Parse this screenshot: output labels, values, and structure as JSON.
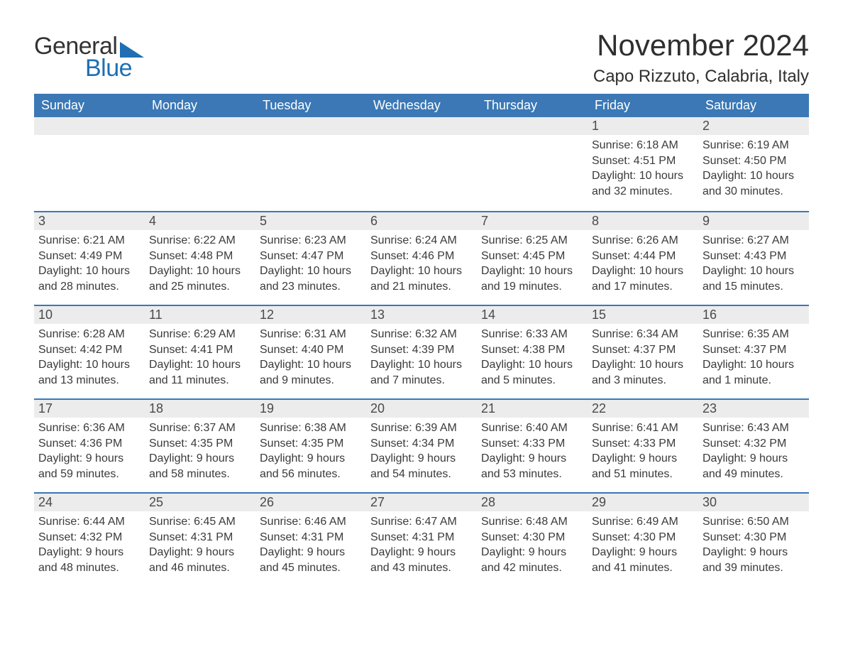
{
  "logo": {
    "text1": "General",
    "text2": "Blue"
  },
  "title": "November 2024",
  "location": "Capo Rizzuto, Calabria, Italy",
  "colors": {
    "header_bg": "#3b78b5",
    "header_text": "#ffffff",
    "row_rule": "#3b78b5",
    "daynum_bg": "#ececec",
    "body_text": "#3a3a3a",
    "logo_blue": "#1f6fb2",
    "page_bg": "#ffffff"
  },
  "weekdays": [
    "Sunday",
    "Monday",
    "Tuesday",
    "Wednesday",
    "Thursday",
    "Friday",
    "Saturday"
  ],
  "grid": [
    [
      {
        "day": "",
        "sunrise": "",
        "sunset": "",
        "daylight": ""
      },
      {
        "day": "",
        "sunrise": "",
        "sunset": "",
        "daylight": ""
      },
      {
        "day": "",
        "sunrise": "",
        "sunset": "",
        "daylight": ""
      },
      {
        "day": "",
        "sunrise": "",
        "sunset": "",
        "daylight": ""
      },
      {
        "day": "",
        "sunrise": "",
        "sunset": "",
        "daylight": ""
      },
      {
        "day": "1",
        "sunrise": "Sunrise: 6:18 AM",
        "sunset": "Sunset: 4:51 PM",
        "daylight": "Daylight: 10 hours and 32 minutes."
      },
      {
        "day": "2",
        "sunrise": "Sunrise: 6:19 AM",
        "sunset": "Sunset: 4:50 PM",
        "daylight": "Daylight: 10 hours and 30 minutes."
      }
    ],
    [
      {
        "day": "3",
        "sunrise": "Sunrise: 6:21 AM",
        "sunset": "Sunset: 4:49 PM",
        "daylight": "Daylight: 10 hours and 28 minutes."
      },
      {
        "day": "4",
        "sunrise": "Sunrise: 6:22 AM",
        "sunset": "Sunset: 4:48 PM",
        "daylight": "Daylight: 10 hours and 25 minutes."
      },
      {
        "day": "5",
        "sunrise": "Sunrise: 6:23 AM",
        "sunset": "Sunset: 4:47 PM",
        "daylight": "Daylight: 10 hours and 23 minutes."
      },
      {
        "day": "6",
        "sunrise": "Sunrise: 6:24 AM",
        "sunset": "Sunset: 4:46 PM",
        "daylight": "Daylight: 10 hours and 21 minutes."
      },
      {
        "day": "7",
        "sunrise": "Sunrise: 6:25 AM",
        "sunset": "Sunset: 4:45 PM",
        "daylight": "Daylight: 10 hours and 19 minutes."
      },
      {
        "day": "8",
        "sunrise": "Sunrise: 6:26 AM",
        "sunset": "Sunset: 4:44 PM",
        "daylight": "Daylight: 10 hours and 17 minutes."
      },
      {
        "day": "9",
        "sunrise": "Sunrise: 6:27 AM",
        "sunset": "Sunset: 4:43 PM",
        "daylight": "Daylight: 10 hours and 15 minutes."
      }
    ],
    [
      {
        "day": "10",
        "sunrise": "Sunrise: 6:28 AM",
        "sunset": "Sunset: 4:42 PM",
        "daylight": "Daylight: 10 hours and 13 minutes."
      },
      {
        "day": "11",
        "sunrise": "Sunrise: 6:29 AM",
        "sunset": "Sunset: 4:41 PM",
        "daylight": "Daylight: 10 hours and 11 minutes."
      },
      {
        "day": "12",
        "sunrise": "Sunrise: 6:31 AM",
        "sunset": "Sunset: 4:40 PM",
        "daylight": "Daylight: 10 hours and 9 minutes."
      },
      {
        "day": "13",
        "sunrise": "Sunrise: 6:32 AM",
        "sunset": "Sunset: 4:39 PM",
        "daylight": "Daylight: 10 hours and 7 minutes."
      },
      {
        "day": "14",
        "sunrise": "Sunrise: 6:33 AM",
        "sunset": "Sunset: 4:38 PM",
        "daylight": "Daylight: 10 hours and 5 minutes."
      },
      {
        "day": "15",
        "sunrise": "Sunrise: 6:34 AM",
        "sunset": "Sunset: 4:37 PM",
        "daylight": "Daylight: 10 hours and 3 minutes."
      },
      {
        "day": "16",
        "sunrise": "Sunrise: 6:35 AM",
        "sunset": "Sunset: 4:37 PM",
        "daylight": "Daylight: 10 hours and 1 minute."
      }
    ],
    [
      {
        "day": "17",
        "sunrise": "Sunrise: 6:36 AM",
        "sunset": "Sunset: 4:36 PM",
        "daylight": "Daylight: 9 hours and 59 minutes."
      },
      {
        "day": "18",
        "sunrise": "Sunrise: 6:37 AM",
        "sunset": "Sunset: 4:35 PM",
        "daylight": "Daylight: 9 hours and 58 minutes."
      },
      {
        "day": "19",
        "sunrise": "Sunrise: 6:38 AM",
        "sunset": "Sunset: 4:35 PM",
        "daylight": "Daylight: 9 hours and 56 minutes."
      },
      {
        "day": "20",
        "sunrise": "Sunrise: 6:39 AM",
        "sunset": "Sunset: 4:34 PM",
        "daylight": "Daylight: 9 hours and 54 minutes."
      },
      {
        "day": "21",
        "sunrise": "Sunrise: 6:40 AM",
        "sunset": "Sunset: 4:33 PM",
        "daylight": "Daylight: 9 hours and 53 minutes."
      },
      {
        "day": "22",
        "sunrise": "Sunrise: 6:41 AM",
        "sunset": "Sunset: 4:33 PM",
        "daylight": "Daylight: 9 hours and 51 minutes."
      },
      {
        "day": "23",
        "sunrise": "Sunrise: 6:43 AM",
        "sunset": "Sunset: 4:32 PM",
        "daylight": "Daylight: 9 hours and 49 minutes."
      }
    ],
    [
      {
        "day": "24",
        "sunrise": "Sunrise: 6:44 AM",
        "sunset": "Sunset: 4:32 PM",
        "daylight": "Daylight: 9 hours and 48 minutes."
      },
      {
        "day": "25",
        "sunrise": "Sunrise: 6:45 AM",
        "sunset": "Sunset: 4:31 PM",
        "daylight": "Daylight: 9 hours and 46 minutes."
      },
      {
        "day": "26",
        "sunrise": "Sunrise: 6:46 AM",
        "sunset": "Sunset: 4:31 PM",
        "daylight": "Daylight: 9 hours and 45 minutes."
      },
      {
        "day": "27",
        "sunrise": "Sunrise: 6:47 AM",
        "sunset": "Sunset: 4:31 PM",
        "daylight": "Daylight: 9 hours and 43 minutes."
      },
      {
        "day": "28",
        "sunrise": "Sunrise: 6:48 AM",
        "sunset": "Sunset: 4:30 PM",
        "daylight": "Daylight: 9 hours and 42 minutes."
      },
      {
        "day": "29",
        "sunrise": "Sunrise: 6:49 AM",
        "sunset": "Sunset: 4:30 PM",
        "daylight": "Daylight: 9 hours and 41 minutes."
      },
      {
        "day": "30",
        "sunrise": "Sunrise: 6:50 AM",
        "sunset": "Sunset: 4:30 PM",
        "daylight": "Daylight: 9 hours and 39 minutes."
      }
    ]
  ]
}
